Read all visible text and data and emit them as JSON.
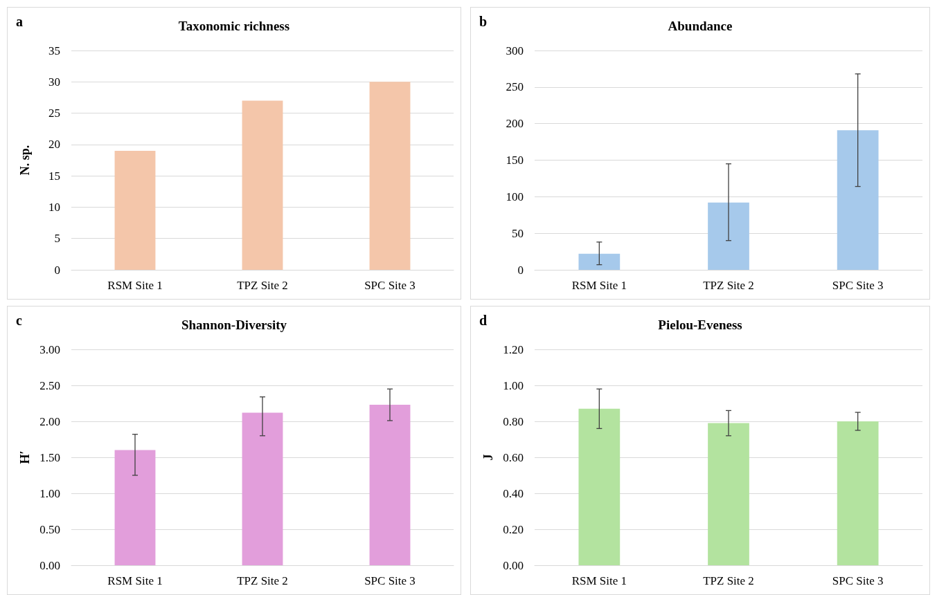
{
  "chart_data": [
    {
      "type": "bar",
      "title": "Taxonomic richness",
      "ylabel": "N. sp.",
      "annotations": [
        "a"
      ],
      "categories": [
        "RSM Site 1",
        "TPZ Site 2",
        "SPC Site 3"
      ],
      "values": [
        19,
        27,
        30
      ],
      "color": "#f4c6aa",
      "ylim": [
        0,
        35
      ],
      "yticks": [
        0,
        5,
        10,
        15,
        20,
        25,
        30,
        35
      ],
      "grid": "y"
    },
    {
      "type": "bar",
      "title": "Abundance",
      "annotations": [
        "b"
      ],
      "categories": [
        "RSM Site 1",
        "TPZ Site 2",
        "SPC Site 3"
      ],
      "values": [
        22,
        92,
        191
      ],
      "errors": [
        [
          7,
          38
        ],
        [
          40,
          145
        ],
        [
          114,
          268
        ]
      ],
      "color": "#a6c9eb",
      "ylim": [
        0,
        300
      ],
      "yticks": [
        0,
        50,
        100,
        150,
        200,
        250,
        300
      ],
      "grid": "y"
    },
    {
      "type": "bar",
      "title": "Shannon-Diversity",
      "ylabel": "H′",
      "annotations": [
        "c"
      ],
      "categories": [
        "RSM Site 1",
        "TPZ Site 2",
        "SPC Site 3"
      ],
      "values": [
        1.6,
        2.12,
        2.23
      ],
      "errors": [
        [
          1.25,
          1.82
        ],
        [
          1.8,
          2.34
        ],
        [
          2.01,
          2.45
        ]
      ],
      "color": "#e29edb",
      "ylim": [
        0,
        3
      ],
      "yticks": [
        {
          "value": 0,
          "label": "0.00"
        },
        {
          "value": 0.5,
          "label": "0.50"
        },
        {
          "value": 1,
          "label": "1.00"
        },
        {
          "value": 1.5,
          "label": "1.50"
        },
        {
          "value": 2,
          "label": "2.00"
        },
        {
          "value": 2.5,
          "label": "2.50"
        },
        {
          "value": 3,
          "label": "3.00"
        }
      ],
      "grid": "y"
    },
    {
      "type": "bar",
      "title": "Pielou-Eveness",
      "ylabel": "J",
      "annotations": [
        "d"
      ],
      "categories": [
        "RSM Site 1",
        "TPZ Site 2",
        "SPC Site 3"
      ],
      "values": [
        0.87,
        0.79,
        0.8
      ],
      "errors": [
        [
          0.76,
          0.98
        ],
        [
          0.72,
          0.86
        ],
        [
          0.75,
          0.85
        ]
      ],
      "color": "#b3e39f",
      "ylim": [
        0,
        1.2
      ],
      "yticks": [
        {
          "value": 0,
          "label": "0.00"
        },
        {
          "value": 0.2,
          "label": "0.20"
        },
        {
          "value": 0.4,
          "label": "0.40"
        },
        {
          "value": 0.6,
          "label": "0.60"
        },
        {
          "value": 0.8,
          "label": "0.80"
        },
        {
          "value": 1,
          "label": "1.00"
        },
        {
          "value": 1.2,
          "label": "1.20"
        }
      ],
      "grid": "y"
    }
  ]
}
